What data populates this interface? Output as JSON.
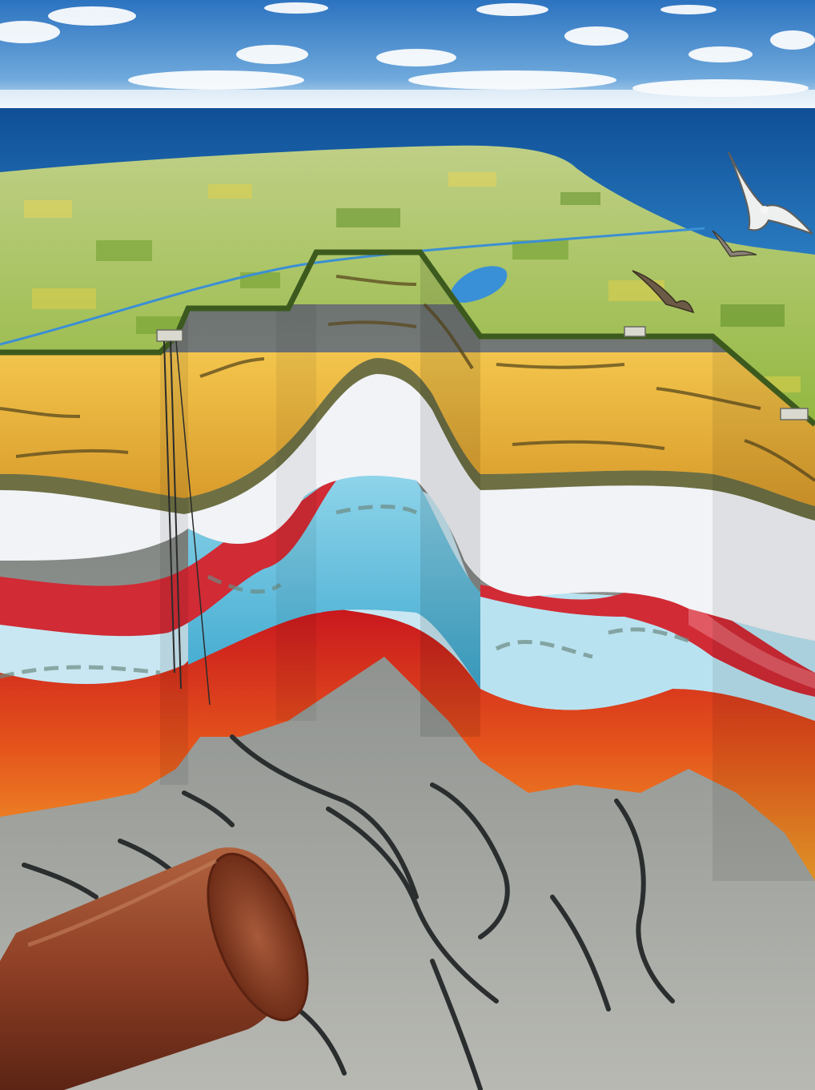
{
  "scene": {
    "subject": "geological-cross-section",
    "colors": {
      "sky": "#3f86c9",
      "sea": "#1f63a8",
      "land": "#a9c14a",
      "sandstone": "#e9b33c",
      "shale": "#7d7b52",
      "chalk": "#eef0f4",
      "limestone": "#5fc1df",
      "salt_red": "#d12b35",
      "rock_orange": "#e8591e",
      "basement": "#8f9390",
      "pipe": "#9a4a2e"
    },
    "icons": [
      "cloud-icon",
      "seagull-icon",
      "well-derrick-icon",
      "pipe-icon"
    ]
  }
}
